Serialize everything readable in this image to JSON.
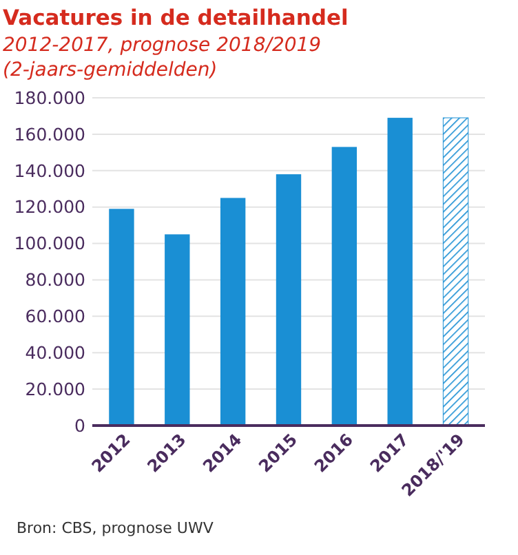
{
  "chart_data": {
    "type": "bar",
    "title": "Vacatures in de detailhandel",
    "subtitle": "2012-2017, prognose 2018/2019 (2-jaars-gemiddelden)",
    "categories": [
      "2012",
      "2013",
      "2014",
      "2015",
      "2016",
      "2017",
      "2018/'19"
    ],
    "series": [
      {
        "color": "#1a8fd4",
        "values": [
          119000,
          105000,
          125000,
          138000,
          153000,
          169000,
          null
        ]
      },
      {
        "color": "#1a8fd4",
        "values": [
          null,
          null,
          null,
          null,
          null,
          null,
          169000
        ]
      }
    ],
    "ylim": [
      0,
      180000
    ],
    "yticks": [
      {
        "value": 0,
        "label": "0"
      },
      {
        "value": 20000,
        "label": "20.000"
      },
      {
        "value": 40000,
        "label": "40.000"
      },
      {
        "value": 60000,
        "label": "60.000"
      },
      {
        "value": 80000,
        "label": "80.000"
      },
      {
        "value": 100000,
        "label": "100.000"
      },
      {
        "value": 120000,
        "label": "120.000"
      },
      {
        "value": 140000,
        "label": "140.000"
      },
      {
        "value": 160000,
        "label": "160.000"
      },
      {
        "value": 180000,
        "label": "180.000"
      }
    ],
    "grid": "y",
    "annotations": [
      "Bron: CBS, prognose UWV"
    ]
  }
}
